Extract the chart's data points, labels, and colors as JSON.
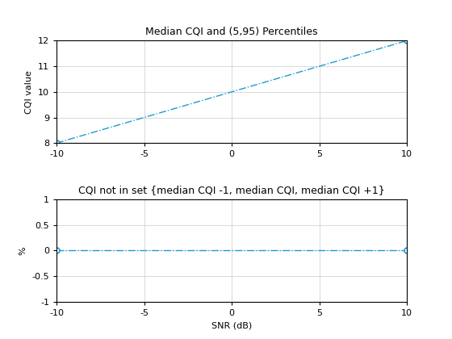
{
  "snr": [
    -10,
    -9,
    -8,
    -7,
    -6,
    -5,
    -4,
    -3,
    -2,
    -1,
    0,
    1,
    2,
    3,
    4,
    5,
    6,
    7,
    8,
    9,
    10
  ],
  "median_cqi": [
    8.0,
    8.2,
    8.4,
    8.6,
    8.8,
    9.0,
    9.2,
    9.4,
    9.6,
    9.8,
    10.0,
    10.2,
    10.4,
    10.6,
    10.8,
    11.0,
    11.2,
    11.4,
    11.6,
    11.8,
    12.0
  ],
  "pct_not_in_set": [
    0.0,
    0.0,
    0.0,
    0.0,
    0.0,
    0.0,
    0.0,
    0.0,
    0.0,
    0.0,
    0.0,
    0.0,
    0.0,
    0.0,
    0.0,
    0.0,
    0.0,
    0.0,
    0.0,
    0.0,
    0.0
  ],
  "line_color": "#1f9bcf",
  "title1": "Median CQI and (5,95) Percentiles",
  "ylabel1": "CQI value",
  "title2": "CQI not in set {median CQI -1, median CQI, median CQI +1}",
  "xlabel2": "SNR (dB)",
  "ylabel2": "%",
  "xlim": [
    -10,
    10
  ],
  "ylim1": [
    8,
    12
  ],
  "ylim2": [
    -1,
    1
  ],
  "yticks1": [
    8,
    9,
    10,
    11,
    12
  ],
  "yticks2": [
    -1,
    -0.5,
    0,
    0.5,
    1
  ],
  "xticks": [
    -10,
    -5,
    0,
    5,
    10
  ],
  "marker_snr": [
    -10,
    10
  ],
  "marker_cqi": [
    8.0,
    12.0
  ],
  "marker_pct": [
    0.0,
    0.0
  ],
  "background_color": "#ffffff"
}
